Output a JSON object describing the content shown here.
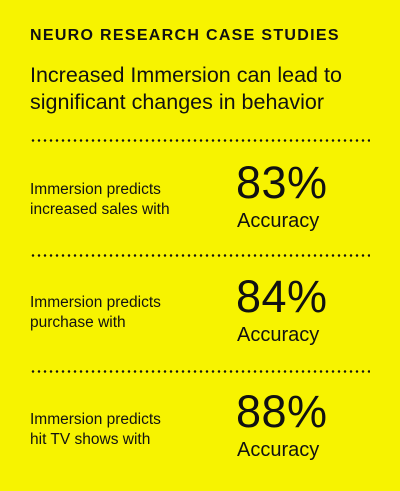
{
  "header": {
    "eyebrow": "NEURO RESEARCH CASE STUDIES",
    "headline": "Increased Immersion can lead to significant changes in behavior"
  },
  "stats": [
    {
      "line1": "Immersion predicts",
      "line2": "increased sales with",
      "value": "83%",
      "unit": "Accuracy"
    },
    {
      "line1": "Immersion predicts",
      "line2": "purchase with",
      "value": "84%",
      "unit": "Accuracy"
    },
    {
      "line1": "Immersion predicts",
      "line2": "hit TV shows with",
      "value": "88%",
      "unit": "Accuracy"
    }
  ],
  "colors": {
    "background": "#f7f300",
    "text": "#111111"
  }
}
